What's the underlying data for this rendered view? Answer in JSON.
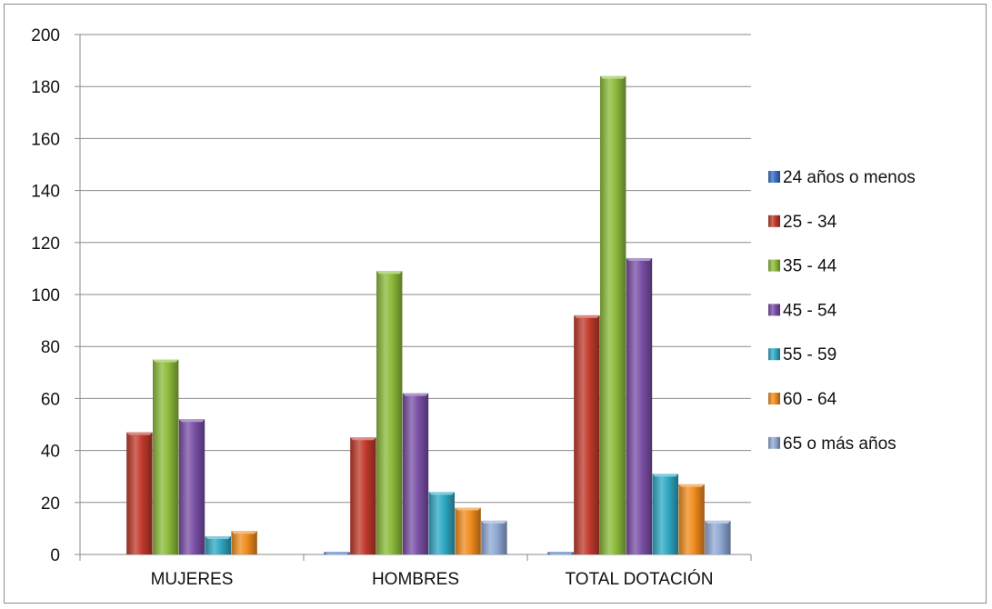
{
  "chart_data": {
    "type": "bar",
    "title": "",
    "xlabel": "",
    "ylabel": "",
    "ylim": [
      0,
      200
    ],
    "yticks": [
      0,
      20,
      40,
      60,
      80,
      100,
      120,
      140,
      160,
      180,
      200
    ],
    "grid": true,
    "legend_position": "right",
    "categories": [
      "MUJERES",
      "HOMBRES",
      "TOTAL DOTACIÓN"
    ],
    "series": [
      {
        "name": "24 años o menos",
        "color": "#3a6fc4",
        "values": [
          0,
          1,
          1
        ]
      },
      {
        "name": "25 - 34",
        "color": "#c0392b",
        "values": [
          47,
          45,
          92
        ]
      },
      {
        "name": "35 - 44",
        "color": "#8cbb3a",
        "values": [
          75,
          109,
          184
        ]
      },
      {
        "name": "45 - 54",
        "color": "#7a4fa6",
        "values": [
          52,
          62,
          114
        ]
      },
      {
        "name": "55 - 59",
        "color": "#2ea8c4",
        "values": [
          7,
          24,
          31
        ]
      },
      {
        "name": "60 - 64",
        "color": "#f08c1e",
        "values": [
          9,
          18,
          27
        ]
      },
      {
        "name": "65 o más años",
        "color": "#8fa8d4",
        "values": [
          0,
          13,
          13
        ]
      }
    ]
  }
}
